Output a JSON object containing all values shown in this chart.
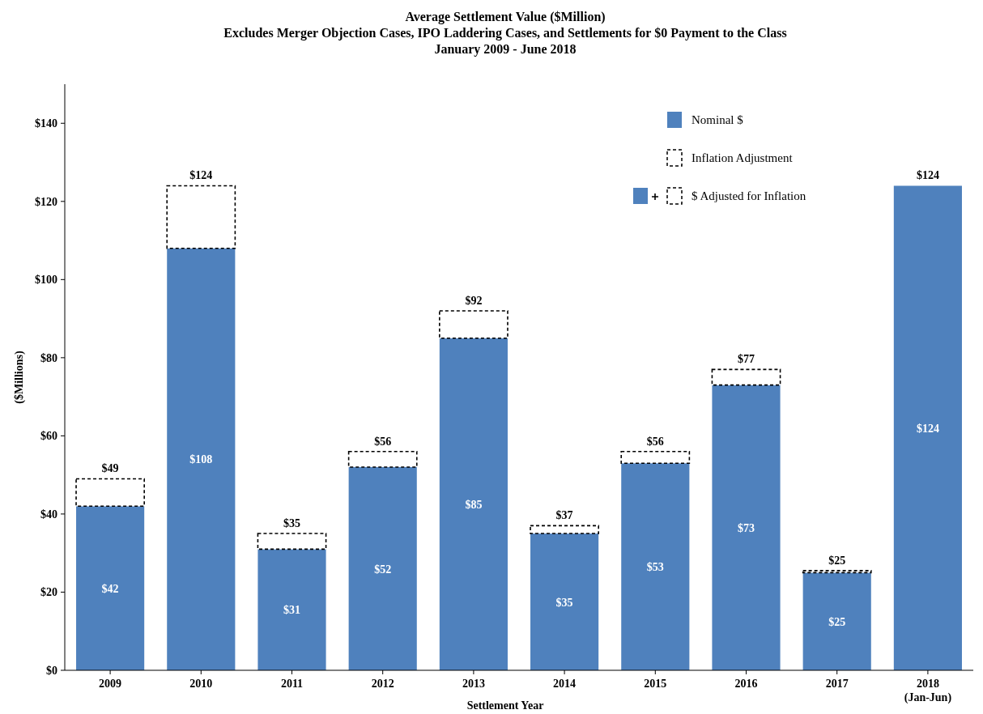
{
  "chart_data": {
    "type": "bar",
    "stacked": true,
    "title": "Average Settlement Value ($Million)",
    "subtitle": "Excludes Merger Objection Cases, IPO Laddering Cases, and Settlements for $0 Payment to the Class\nJanuary 2009 - June 2018",
    "xlabel": "Settlement Year",
    "ylabel": "($Millions)",
    "categories": [
      "2009",
      "2010",
      "2011",
      "2012",
      "2013",
      "2014",
      "2015",
      "2016",
      "2017",
      "2018\n(Jan-Jun)"
    ],
    "series": [
      {
        "name": "Nominal $",
        "color": "#4f81bd",
        "values": [
          42,
          108,
          31,
          52,
          85,
          35,
          53,
          73,
          25,
          124
        ],
        "value_labels": [
          "$42",
          "$108",
          "$31",
          "$52",
          "$85",
          "$35",
          "$53",
          "$73",
          "$25",
          "$124"
        ]
      },
      {
        "name": "Inflation Adjustment",
        "color": "#ffffff",
        "line_style": "dashed",
        "values": [
          7,
          16,
          4,
          4,
          7,
          2,
          3,
          4,
          0.5,
          0
        ]
      }
    ],
    "totals": [
      "$49",
      "$124",
      "$35",
      "$56",
      "$92",
      "$37",
      "$56",
      "$77",
      "$25",
      "$124"
    ],
    "annotations": [
      "$ Adjusted for Inflation"
    ],
    "ylim": [
      0,
      150
    ],
    "yticks": [
      {
        "value": 0,
        "label": "$0"
      },
      {
        "value": 20,
        "label": "$20"
      },
      {
        "value": 40,
        "label": "$40"
      },
      {
        "value": 60,
        "label": "$60"
      },
      {
        "value": 80,
        "label": "$80"
      },
      {
        "value": 100,
        "label": "$100"
      },
      {
        "value": 120,
        "label": "$120"
      },
      {
        "value": 140,
        "label": "$140"
      }
    ],
    "grid": false,
    "legend": "top right"
  }
}
